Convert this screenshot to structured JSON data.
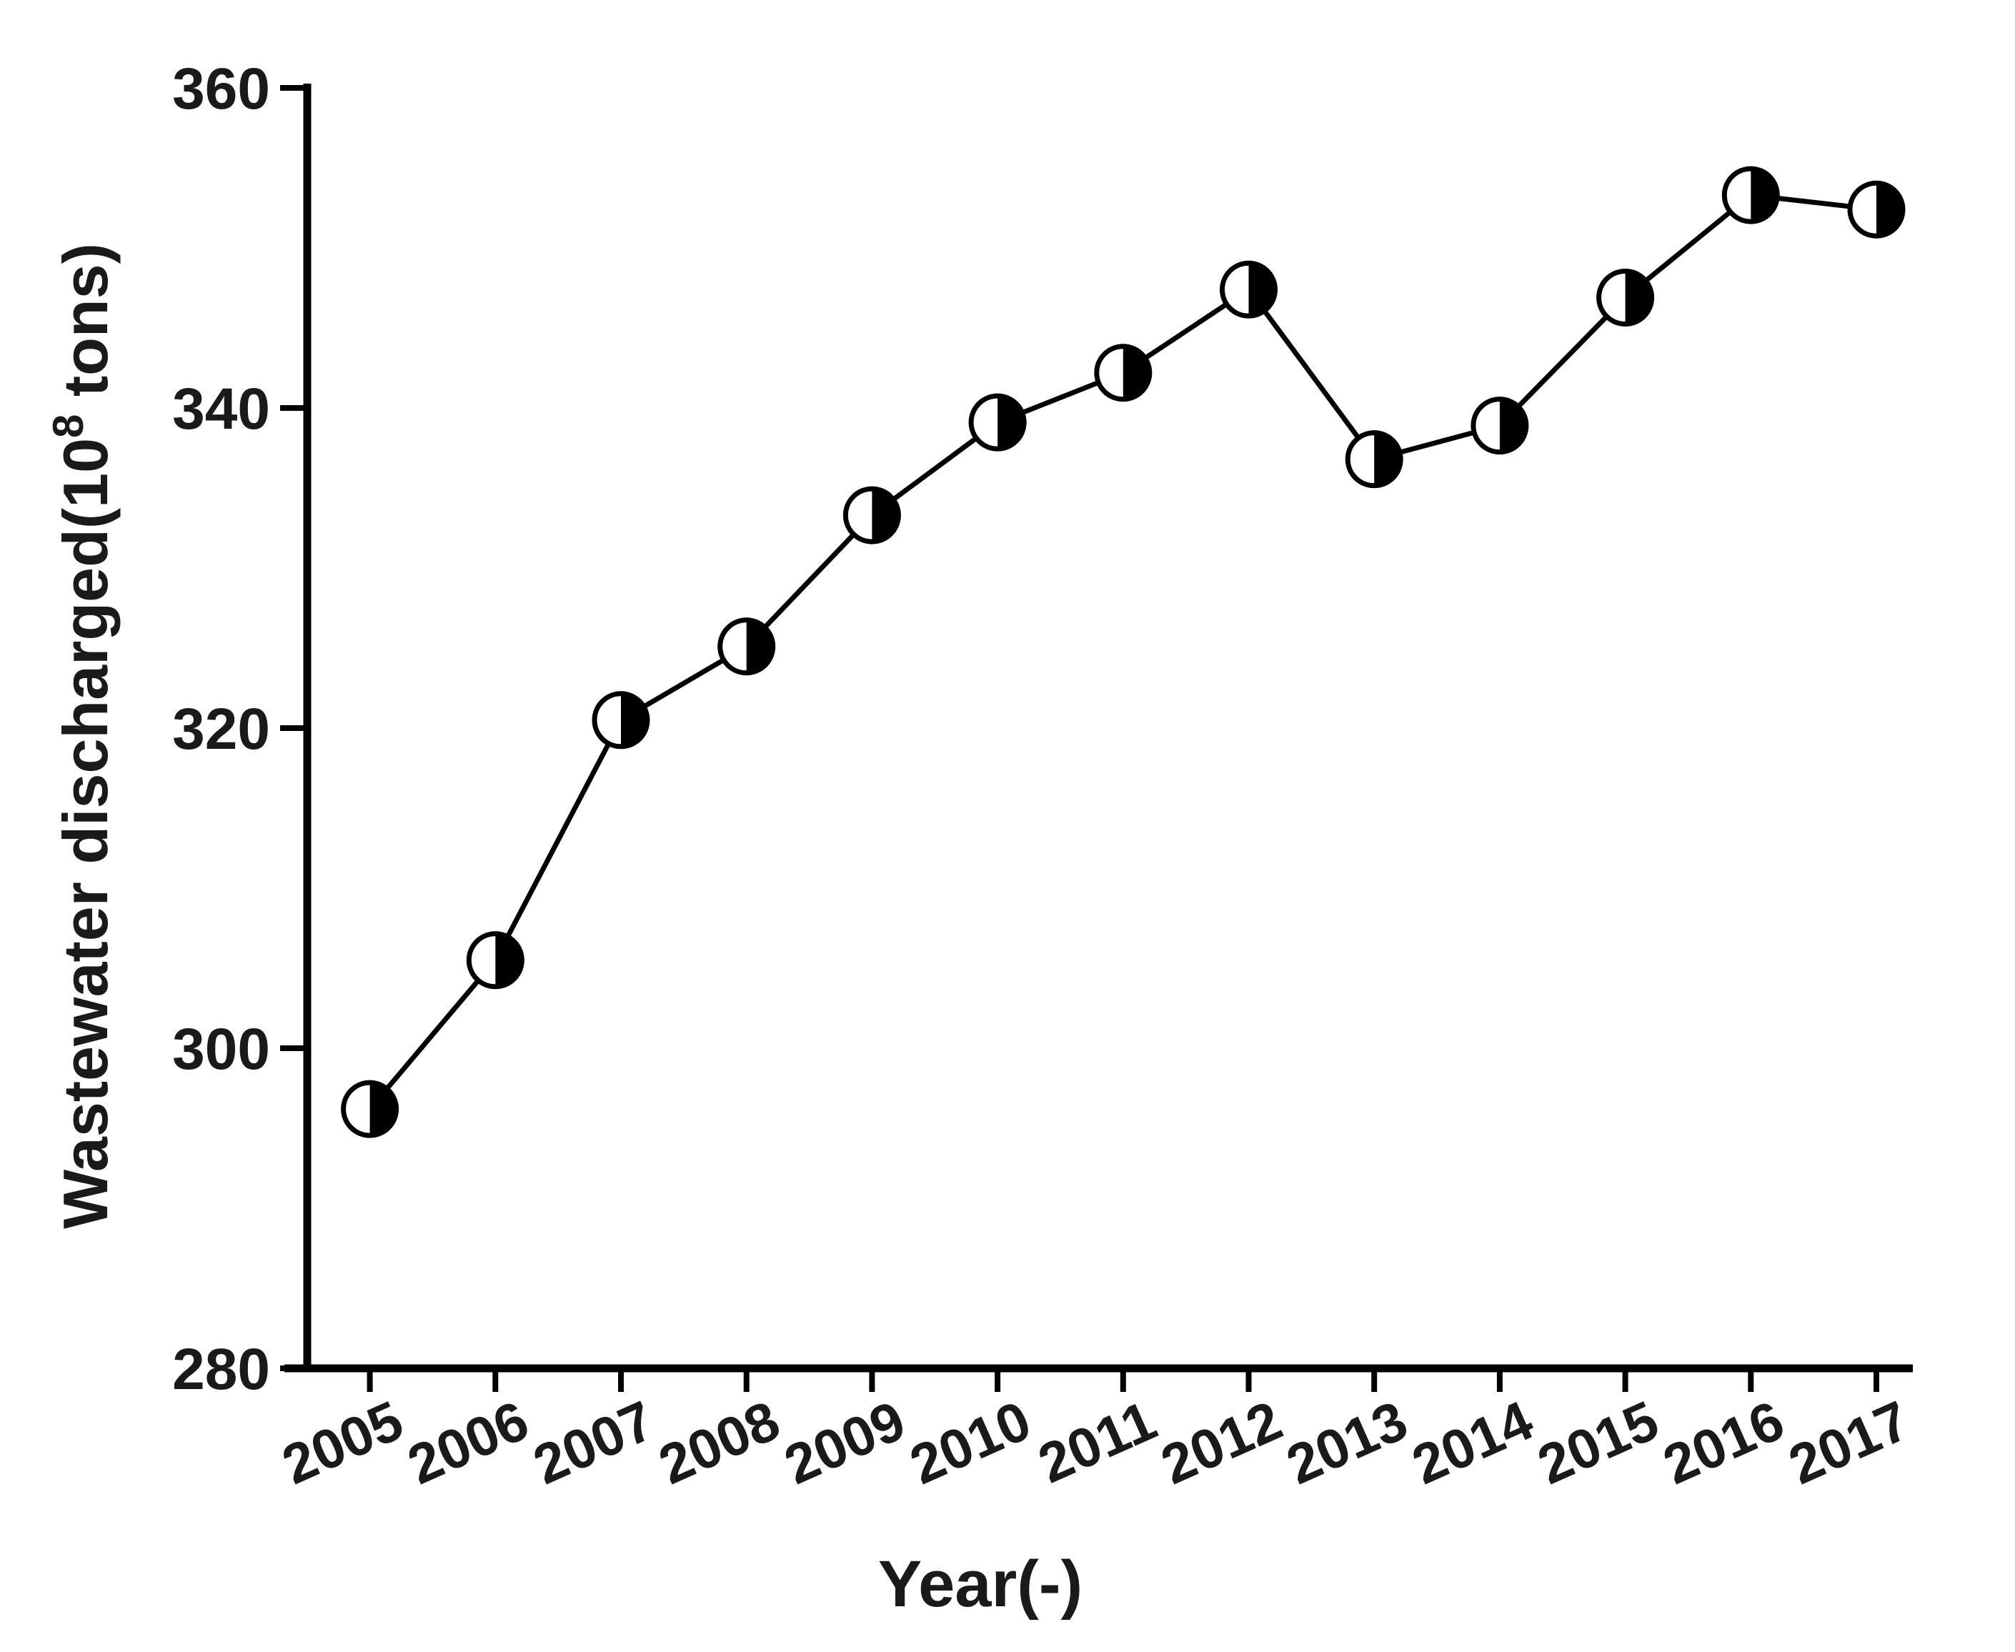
{
  "chart_data": {
    "type": "line",
    "title": "",
    "xlabel": "Year(-)",
    "ylabel": "Wastewater discharged(10⁸ tons)",
    "ylabel_parts": {
      "prefix": "Wastewater discharged(10",
      "superscript": "8",
      "suffix": " tons)"
    },
    "categories": [
      "2005",
      "2006",
      "2007",
      "2008",
      "2009",
      "2010",
      "2011",
      "2012",
      "2013",
      "2014",
      "2015",
      "2016",
      "2017"
    ],
    "values": [
      296.2,
      305.5,
      320.5,
      325.1,
      333.3,
      339.1,
      342.2,
      347.4,
      336.8,
      338.9,
      346.9,
      353.3,
      352.4
    ],
    "series_name": "Wastewater discharged",
    "ylim": [
      280,
      360
    ],
    "yticks": [
      280,
      300,
      320,
      340,
      360
    ],
    "grid": "off",
    "legend": "none",
    "marker": "circle-right-half-filled",
    "marker_fill_left": "#ffffff",
    "marker_fill_right": "#000000",
    "line_color": "#000000",
    "axis_color": "#000000",
    "background_color": "#ffffff",
    "x_tick_label_rotation_deg": -24
  }
}
